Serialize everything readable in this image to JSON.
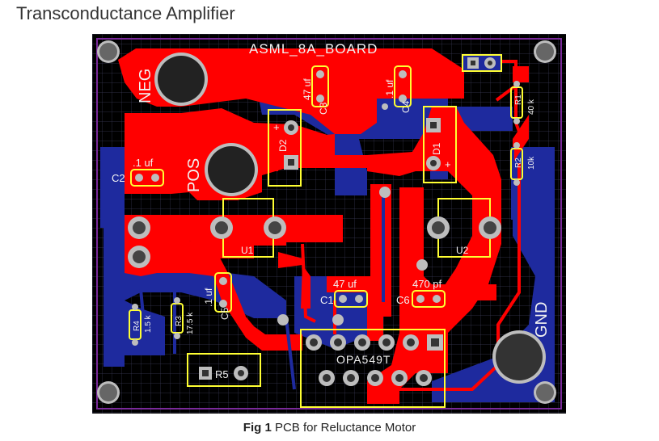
{
  "page": {
    "title": "Transconductance Amplifier"
  },
  "figure": {
    "caption_label": "Fig 1",
    "caption_text": "PCB for Reluctance Motor"
  },
  "board": {
    "name": "ASML_8A_BOARD",
    "colors": {
      "background": "#000000",
      "grid": "#3a3a55",
      "copper_top": "#ff0000",
      "copper_bottom": "#1e2a9e",
      "silkscreen": "#ffff33",
      "pad": "#bdbdbd",
      "outline": "#7a2a9a",
      "text": "#f2f2f2"
    },
    "labels": {
      "neg": "NEG",
      "pos": "POS",
      "gnd": "GND",
      "u1": "U1",
      "u2": "U2",
      "opamp": "OPA549T",
      "r5": "R5",
      "c1": "C1",
      "c1_value": "47 uf",
      "c2": "C2",
      "c2_value": ".1 uf",
      "c3": "C3",
      "c3_value": "47 uf",
      "c4": "C4",
      "c4_value": ".1 uf",
      "c5": "C5",
      "c5_value": ".1 uf",
      "c6": "C6",
      "c6_value": "470 pf",
      "d1": "D1",
      "d2": "D2",
      "r1": "R1",
      "r1_value": "40 k",
      "r2": "R2",
      "r2_value": "10k",
      "r3": "R3",
      "r3_value": "17.5 k",
      "r4": "R4",
      "r4_value": "1.5 k",
      "plus": "+"
    }
  }
}
